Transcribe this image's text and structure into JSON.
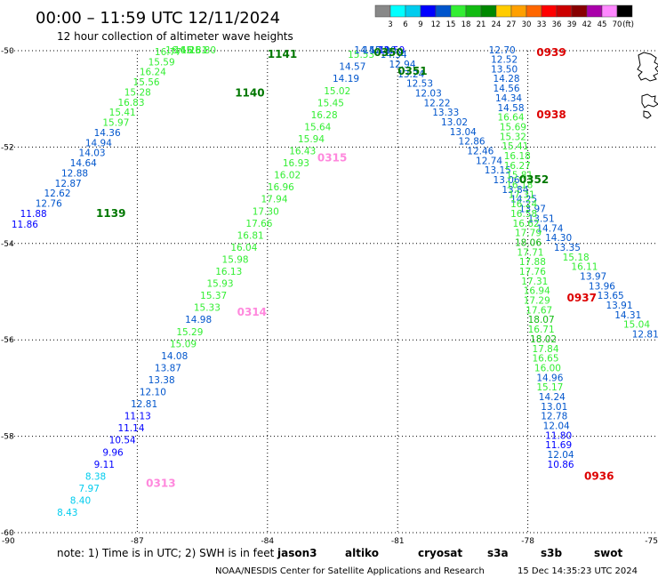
{
  "header": {
    "title": "00:00 – 11:59 UTC 12/11/2024",
    "subtitle": "12 hour collection of altimeter wave heights"
  },
  "footer": {
    "note": "note:  1) Time is in UTC; 2) SWH is in feet",
    "credit": "NOAA/NESDIS Center for Satellite Applications and Research",
    "timestamp": "15 Dec 14:35:23 UTC 2024"
  },
  "missions": [
    {
      "name": "jason3",
      "color": "#3cb43c"
    },
    {
      "name": "altiko",
      "color": "#ff9900"
    },
    {
      "name": "cryosat",
      "color": "#dd0000"
    },
    {
      "name": "s3a",
      "color": "#990000"
    },
    {
      "name": "s3b",
      "color": "#b8a0e0"
    },
    {
      "name": "swot",
      "color": "#ff99dd"
    }
  ],
  "colorbar": {
    "unit": "(ft)",
    "labels": [
      "3",
      "6",
      "9",
      "12",
      "15",
      "18",
      "21",
      "24",
      "27",
      "30",
      "33",
      "36",
      "39",
      "42",
      "45",
      "70"
    ],
    "colors": [
      "#888888",
      "#00ffff",
      "#00ccee",
      "#0000ff",
      "#0055cc",
      "#33ee33",
      "#11bb11",
      "#008800",
      "#ffcc00",
      "#ffa000",
      "#ff6600",
      "#ff0000",
      "#cc0000",
      "#880000",
      "#aa00aa",
      "#ff88ff",
      "#000000"
    ]
  },
  "chart_data": {
    "type": "scatter",
    "title": "00:00 – 11:59 UTC 12/11/2024",
    "subtitle": "12 hour collection of altimeter wave heights",
    "xlim": [
      -90,
      -75
    ],
    "ylim": [
      -60,
      -50
    ],
    "xticks": [
      -90,
      -87,
      -84,
      -81,
      -78,
      -75
    ],
    "yticks": [
      -50,
      -52,
      -54,
      -56,
      -58,
      -60
    ],
    "xtick_labels": [
      "-90",
      "-87",
      "-84",
      "-81",
      "-78",
      "-75"
    ],
    "ytick_labels": [
      "-50",
      "-52",
      "-54",
      "-56",
      "-58",
      "-60"
    ],
    "grid": true,
    "time_labels": [
      {
        "text": "1141",
        "lon": -84.0,
        "lat": -50.15,
        "color": "#007700"
      },
      {
        "text": "1140",
        "lon": -84.75,
        "lat": -50.95,
        "color": "#007700"
      },
      {
        "text": "1139",
        "lon": -87.95,
        "lat": -53.45,
        "color": "#007700"
      },
      {
        "text": "0315",
        "lon": -82.85,
        "lat": -52.3,
        "color": "#ff88dd"
      },
      {
        "text": "0314",
        "lon": -84.7,
        "lat": -55.5,
        "color": "#ff88dd"
      },
      {
        "text": "0313",
        "lon": -86.8,
        "lat": -59.05,
        "color": "#ff88dd"
      },
      {
        "text": "0350",
        "lon": -81.55,
        "lat": -50.05,
        "color": "#007700"
      },
      {
        "text": "0351",
        "lon": -81.0,
        "lat": -50.5,
        "color": "#007700"
      },
      {
        "text": "0352",
        "lon": -78.2,
        "lat": -52.75,
        "color": "#007700"
      },
      {
        "text": "0939",
        "lon": -77.8,
        "lat": -50.05,
        "color": "#dd0000"
      },
      {
        "text": "0938",
        "lon": -77.8,
        "lat": -51.4,
        "color": "#dd0000"
      },
      {
        "text": "0937",
        "lon": -77.1,
        "lat": -55.2,
        "color": "#dd0000"
      },
      {
        "text": "0936",
        "lon": -76.7,
        "lat": -58.9,
        "color": "#dd0000"
      }
    ],
    "series": [
      {
        "mission": "jason3",
        "time_start": "1139",
        "time_end": "1141",
        "points": [
          {
            "lon": -89.9,
            "lat": -53.67,
            "v": "11.86"
          },
          {
            "lon": -89.7,
            "lat": -53.45,
            "v": "11.88"
          },
          {
            "lon": -89.35,
            "lat": -53.24,
            "v": "12.76"
          },
          {
            "lon": -89.15,
            "lat": -53.03,
            "v": "12.62"
          },
          {
            "lon": -88.9,
            "lat": -52.82,
            "v": "12.87"
          },
          {
            "lon": -88.75,
            "lat": -52.61,
            "v": "12.88"
          },
          {
            "lon": -88.55,
            "lat": -52.4,
            "v": "14.64"
          },
          {
            "lon": -88.35,
            "lat": -52.19,
            "v": "14.03"
          },
          {
            "lon": -88.2,
            "lat": -51.98,
            "v": "14.94"
          },
          {
            "lon": -88.0,
            "lat": -51.77,
            "v": "14.36"
          },
          {
            "lon": -87.8,
            "lat": -51.56,
            "v": "15.97"
          },
          {
            "lon": -87.65,
            "lat": -51.35,
            "v": "15.41"
          },
          {
            "lon": -87.45,
            "lat": -51.14,
            "v": "16.83"
          },
          {
            "lon": -87.3,
            "lat": -50.93,
            "v": "15.28"
          },
          {
            "lon": -87.1,
            "lat": -50.72,
            "v": "15.56"
          },
          {
            "lon": -86.95,
            "lat": -50.51,
            "v": "16.24"
          },
          {
            "lon": -86.75,
            "lat": -50.3,
            "v": "15.59"
          },
          {
            "lon": -86.6,
            "lat": -50.09,
            "v": "16.77"
          },
          {
            "lon": -86.35,
            "lat": -49.88,
            "v": "16.45"
          },
          {
            "lon": -86.15,
            "lat": -49.67,
            "v": "16.25"
          },
          {
            "lon": -86.0,
            "lat": -49.46,
            "v": "16.81"
          },
          {
            "lon": -85.8,
            "lat": -49.25,
            "v": "16.80"
          }
        ]
      },
      {
        "mission": "swot",
        "time_start": "0313",
        "time_end": "0315",
        "points": [
          {
            "lon": -88.85,
            "lat": -59.65,
            "v": "8.43"
          },
          {
            "lon": -88.55,
            "lat": -59.4,
            "v": "8.40"
          },
          {
            "lon": -88.35,
            "lat": -59.15,
            "v": "7.97"
          },
          {
            "lon": -88.2,
            "lat": -58.9,
            "v": "8.38"
          },
          {
            "lon": -88.0,
            "lat": -58.65,
            "v": "9.11"
          },
          {
            "lon": -87.8,
            "lat": -58.4,
            "v": "9.96"
          },
          {
            "lon": -87.65,
            "lat": -58.15,
            "v": "10.54"
          },
          {
            "lon": -87.45,
            "lat": -57.9,
            "v": "11.14"
          },
          {
            "lon": -87.3,
            "lat": -57.65,
            "v": "11.13"
          },
          {
            "lon": -87.15,
            "lat": -57.4,
            "v": "12.81"
          },
          {
            "lon": -86.95,
            "lat": -57.15,
            "v": "12.10"
          },
          {
            "lon": -86.75,
            "lat": -56.9,
            "v": "13.38"
          },
          {
            "lon": -86.6,
            "lat": -56.65,
            "v": "13.87"
          },
          {
            "lon": -86.45,
            "lat": -56.4,
            "v": "14.08"
          },
          {
            "lon": -86.25,
            "lat": -56.15,
            "v": "15.09"
          },
          {
            "lon": -86.1,
            "lat": -55.9,
            "v": "15.29"
          },
          {
            "lon": -85.9,
            "lat": -55.65,
            "v": "14.98"
          },
          {
            "lon": -85.7,
            "lat": -55.4,
            "v": "15.33"
          },
          {
            "lon": -85.55,
            "lat": -55.15,
            "v": "15.37"
          },
          {
            "lon": -85.4,
            "lat": -54.9,
            "v": "15.93"
          },
          {
            "lon": -85.2,
            "lat": -54.65,
            "v": "16.13"
          },
          {
            "lon": -85.05,
            "lat": -54.4,
            "v": "15.98"
          },
          {
            "lon": -84.85,
            "lat": -54.15,
            "v": "16.04"
          },
          {
            "lon": -84.7,
            "lat": -53.9,
            "v": "16.81"
          },
          {
            "lon": -84.5,
            "lat": -53.65,
            "v": "17.66"
          },
          {
            "lon": -84.35,
            "lat": -53.4,
            "v": "17.30"
          },
          {
            "lon": -84.15,
            "lat": -53.15,
            "v": "17.94"
          },
          {
            "lon": -84.0,
            "lat": -52.9,
            "v": "16.96"
          },
          {
            "lon": -83.85,
            "lat": -52.65,
            "v": "16.02"
          },
          {
            "lon": -83.65,
            "lat": -52.4,
            "v": "16.93"
          },
          {
            "lon": -83.5,
            "lat": -52.15,
            "v": "16.43"
          },
          {
            "lon": -83.3,
            "lat": -51.9,
            "v": "15.94"
          },
          {
            "lon": -83.15,
            "lat": -51.65,
            "v": "15.64"
          },
          {
            "lon": -83.0,
            "lat": -51.4,
            "v": "16.28"
          },
          {
            "lon": -82.85,
            "lat": -51.15,
            "v": "15.45"
          },
          {
            "lon": -82.7,
            "lat": -50.9,
            "v": "15.02"
          },
          {
            "lon": -82.5,
            "lat": -50.65,
            "v": "14.19"
          },
          {
            "lon": -82.35,
            "lat": -50.4,
            "v": "14.57"
          },
          {
            "lon": -82.15,
            "lat": -50.15,
            "v": "15.53"
          },
          {
            "lon": -82.0,
            "lat": -49.9,
            "v": "14.55"
          },
          {
            "lon": -81.8,
            "lat": -49.65,
            "v": "14.72"
          },
          {
            "lon": -81.65,
            "lat": -49.4,
            "v": "12.90"
          },
          {
            "lon": -81.45,
            "lat": -49.15,
            "v": "11.59"
          }
        ]
      },
      {
        "mission": "jason3",
        "time_start": "0350",
        "time_end": "0352",
        "points": [
          {
            "lon": -81.4,
            "lat": -50.15,
            "v": "14.34"
          },
          {
            "lon": -81.2,
            "lat": -50.35,
            "v": "12.94"
          },
          {
            "lon": -81.0,
            "lat": -50.55,
            "v": "13.24"
          },
          {
            "lon": -80.8,
            "lat": -50.75,
            "v": "12.53"
          },
          {
            "lon": -80.6,
            "lat": -50.95,
            "v": "12.03"
          },
          {
            "lon": -80.4,
            "lat": -51.15,
            "v": "12.22"
          },
          {
            "lon": -80.2,
            "lat": -51.35,
            "v": "13.33"
          },
          {
            "lon": -80.0,
            "lat": -51.55,
            "v": "13.02"
          },
          {
            "lon": -79.8,
            "lat": -51.75,
            "v": "13.04"
          },
          {
            "lon": -79.6,
            "lat": -51.95,
            "v": "12.86"
          },
          {
            "lon": -79.4,
            "lat": -52.15,
            "v": "12.46"
          },
          {
            "lon": -79.2,
            "lat": -52.35,
            "v": "12.74"
          },
          {
            "lon": -79.0,
            "lat": -52.55,
            "v": "13.15"
          },
          {
            "lon": -78.8,
            "lat": -52.75,
            "v": "13.06"
          },
          {
            "lon": -78.6,
            "lat": -52.95,
            "v": "13.84"
          },
          {
            "lon": -78.4,
            "lat": -53.15,
            "v": "14.25"
          },
          {
            "lon": -78.2,
            "lat": -53.35,
            "v": "13.97"
          },
          {
            "lon": -78.0,
            "lat": -53.55,
            "v": "13.51"
          },
          {
            "lon": -77.8,
            "lat": -53.75,
            "v": "14.74"
          },
          {
            "lon": -77.6,
            "lat": -53.95,
            "v": "14.30"
          },
          {
            "lon": -77.4,
            "lat": -54.15,
            "v": "13.35"
          },
          {
            "lon": -77.2,
            "lat": -54.35,
            "v": "15.18"
          },
          {
            "lon": -77.0,
            "lat": -54.55,
            "v": "16.11"
          },
          {
            "lon": -76.8,
            "lat": -54.75,
            "v": "13.97"
          },
          {
            "lon": -76.6,
            "lat": -54.95,
            "v": "13.96"
          },
          {
            "lon": -76.4,
            "lat": -55.15,
            "v": "13.65"
          },
          {
            "lon": -76.2,
            "lat": -55.35,
            "v": "13.91"
          },
          {
            "lon": -76.0,
            "lat": -55.55,
            "v": "14.31"
          },
          {
            "lon": -75.8,
            "lat": -55.75,
            "v": "15.04"
          },
          {
            "lon": -75.6,
            "lat": -55.95,
            "v": "12.81"
          }
        ]
      },
      {
        "mission": "cryosat",
        "time_start": "0936",
        "time_end": "0939",
        "points": [
          {
            "lon": -78.9,
            "lat": -50.05,
            "v": "12.70"
          },
          {
            "lon": -78.85,
            "lat": -50.25,
            "v": "12.52"
          },
          {
            "lon": -78.85,
            "lat": -50.45,
            "v": "13.50"
          },
          {
            "lon": -78.8,
            "lat": -50.65,
            "v": "14.28"
          },
          {
            "lon": -78.8,
            "lat": -50.85,
            "v": "14.56"
          },
          {
            "lon": -78.75,
            "lat": -51.05,
            "v": "14.34"
          },
          {
            "lon": -78.7,
            "lat": -51.25,
            "v": "14.58"
          },
          {
            "lon": -78.7,
            "lat": -51.45,
            "v": "16.64"
          },
          {
            "lon": -78.65,
            "lat": -51.65,
            "v": "15.69"
          },
          {
            "lon": -78.65,
            "lat": -51.85,
            "v": "15.32"
          },
          {
            "lon": -78.6,
            "lat": -52.05,
            "v": "15.41"
          },
          {
            "lon": -78.55,
            "lat": -52.25,
            "v": "16.18"
          },
          {
            "lon": -78.55,
            "lat": -52.45,
            "v": "16.27"
          },
          {
            "lon": -78.5,
            "lat": -52.65,
            "v": "15.81"
          },
          {
            "lon": -78.5,
            "lat": -52.85,
            "v": "16.18"
          },
          {
            "lon": -78.45,
            "lat": -53.05,
            "v": "17.31"
          },
          {
            "lon": -78.4,
            "lat": -53.25,
            "v": "16.24"
          },
          {
            "lon": -78.4,
            "lat": -53.45,
            "v": "16.58"
          },
          {
            "lon": -78.35,
            "lat": -53.65,
            "v": "16.62"
          },
          {
            "lon": -78.3,
            "lat": -53.85,
            "v": "17.79"
          },
          {
            "lon": -78.3,
            "lat": -54.05,
            "v": "18.06"
          },
          {
            "lon": -78.25,
            "lat": -54.25,
            "v": "17.71"
          },
          {
            "lon": -78.2,
            "lat": -54.45,
            "v": "17.88"
          },
          {
            "lon": -78.2,
            "lat": -54.65,
            "v": "17.76"
          },
          {
            "lon": -78.15,
            "lat": -54.85,
            "v": "17.31"
          },
          {
            "lon": -78.1,
            "lat": -55.05,
            "v": "16.94"
          },
          {
            "lon": -78.1,
            "lat": -55.25,
            "v": "17.29"
          },
          {
            "lon": -78.05,
            "lat": -55.45,
            "v": "17.67"
          },
          {
            "lon": -78.0,
            "lat": -55.65,
            "v": "18.07"
          },
          {
            "lon": -78.0,
            "lat": -55.85,
            "v": "16.71"
          },
          {
            "lon": -77.95,
            "lat": -56.05,
            "v": "18.02"
          },
          {
            "lon": -77.9,
            "lat": -56.25,
            "v": "17.84"
          },
          {
            "lon": -77.9,
            "lat": -56.45,
            "v": "16.65"
          },
          {
            "lon": -77.85,
            "lat": -56.65,
            "v": "16.00"
          },
          {
            "lon": -77.8,
            "lat": -56.85,
            "v": "14.96"
          },
          {
            "lon": -77.8,
            "lat": -57.05,
            "v": "15.17"
          },
          {
            "lon": -77.75,
            "lat": -57.25,
            "v": "14.24"
          },
          {
            "lon": -77.7,
            "lat": -57.45,
            "v": "13.01"
          },
          {
            "lon": -77.7,
            "lat": -57.65,
            "v": "12.78"
          },
          {
            "lon": -77.65,
            "lat": -57.85,
            "v": "12.04"
          },
          {
            "lon": -77.6,
            "lat": -58.05,
            "v": "11.80"
          },
          {
            "lon": -77.6,
            "lat": -58.25,
            "v": "11.69"
          },
          {
            "lon": -77.55,
            "lat": -58.45,
            "v": "12.04"
          },
          {
            "lon": -77.55,
            "lat": -58.65,
            "v": "10.86"
          }
        ]
      }
    ]
  }
}
